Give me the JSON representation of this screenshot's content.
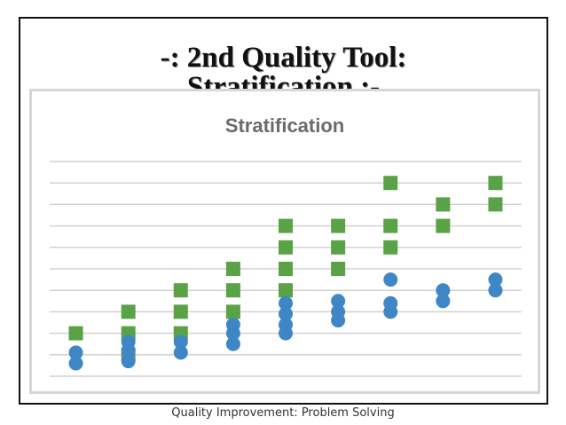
{
  "slide": {
    "title_line1": "-: 2nd Quality Tool:",
    "title_line2": "Stratification :-",
    "footer": "Quality Improvement: Problem Solving"
  },
  "chart_data": {
    "type": "scatter",
    "title": "Stratification",
    "xlabel": "",
    "ylabel": "",
    "grid": true,
    "legend": "none",
    "x_range": [
      0.5,
      9.5
    ],
    "y_range": [
      0,
      10
    ],
    "series": [
      {
        "color": "#5aa246",
        "marker": "square",
        "points": [
          {
            "x": 1,
            "y": 2.0
          },
          {
            "x": 2,
            "y": 1.0
          },
          {
            "x": 2,
            "y": 2.0
          },
          {
            "x": 2,
            "y": 3.0
          },
          {
            "x": 3,
            "y": 2.0
          },
          {
            "x": 3,
            "y": 3.0
          },
          {
            "x": 3,
            "y": 4.0
          },
          {
            "x": 4,
            "y": 3.0
          },
          {
            "x": 4,
            "y": 4.0
          },
          {
            "x": 4,
            "y": 5.0
          },
          {
            "x": 5,
            "y": 4.0
          },
          {
            "x": 5,
            "y": 5.0
          },
          {
            "x": 5,
            "y": 6.0
          },
          {
            "x": 5,
            "y": 7.0
          },
          {
            "x": 6,
            "y": 5.0
          },
          {
            "x": 6,
            "y": 6.0
          },
          {
            "x": 6,
            "y": 7.0
          },
          {
            "x": 7,
            "y": 6.0
          },
          {
            "x": 7,
            "y": 7.0
          },
          {
            "x": 7,
            "y": 9.0
          },
          {
            "x": 8,
            "y": 7.0
          },
          {
            "x": 8,
            "y": 8.0
          },
          {
            "x": 9,
            "y": 8.0
          },
          {
            "x": 9,
            "y": 9.0
          }
        ]
      },
      {
        "color": "#3f86c6",
        "marker": "circle",
        "points": [
          {
            "x": 1,
            "y": 0.6
          },
          {
            "x": 1,
            "y": 1.1
          },
          {
            "x": 2,
            "y": 0.7
          },
          {
            "x": 2,
            "y": 1.2
          },
          {
            "x": 2,
            "y": 1.6
          },
          {
            "x": 3,
            "y": 1.1
          },
          {
            "x": 3,
            "y": 1.6
          },
          {
            "x": 4,
            "y": 1.5
          },
          {
            "x": 4,
            "y": 2.0
          },
          {
            "x": 4,
            "y": 2.4
          },
          {
            "x": 5,
            "y": 2.0
          },
          {
            "x": 5,
            "y": 2.4
          },
          {
            "x": 5,
            "y": 2.9
          },
          {
            "x": 5,
            "y": 3.4
          },
          {
            "x": 6,
            "y": 2.6
          },
          {
            "x": 6,
            "y": 3.0
          },
          {
            "x": 6,
            "y": 3.5
          },
          {
            "x": 7,
            "y": 3.0
          },
          {
            "x": 7,
            "y": 3.4
          },
          {
            "x": 7,
            "y": 4.5
          },
          {
            "x": 8,
            "y": 3.5
          },
          {
            "x": 8,
            "y": 4.0
          },
          {
            "x": 9,
            "y": 4.0
          },
          {
            "x": 9,
            "y": 4.5
          }
        ]
      }
    ]
  }
}
